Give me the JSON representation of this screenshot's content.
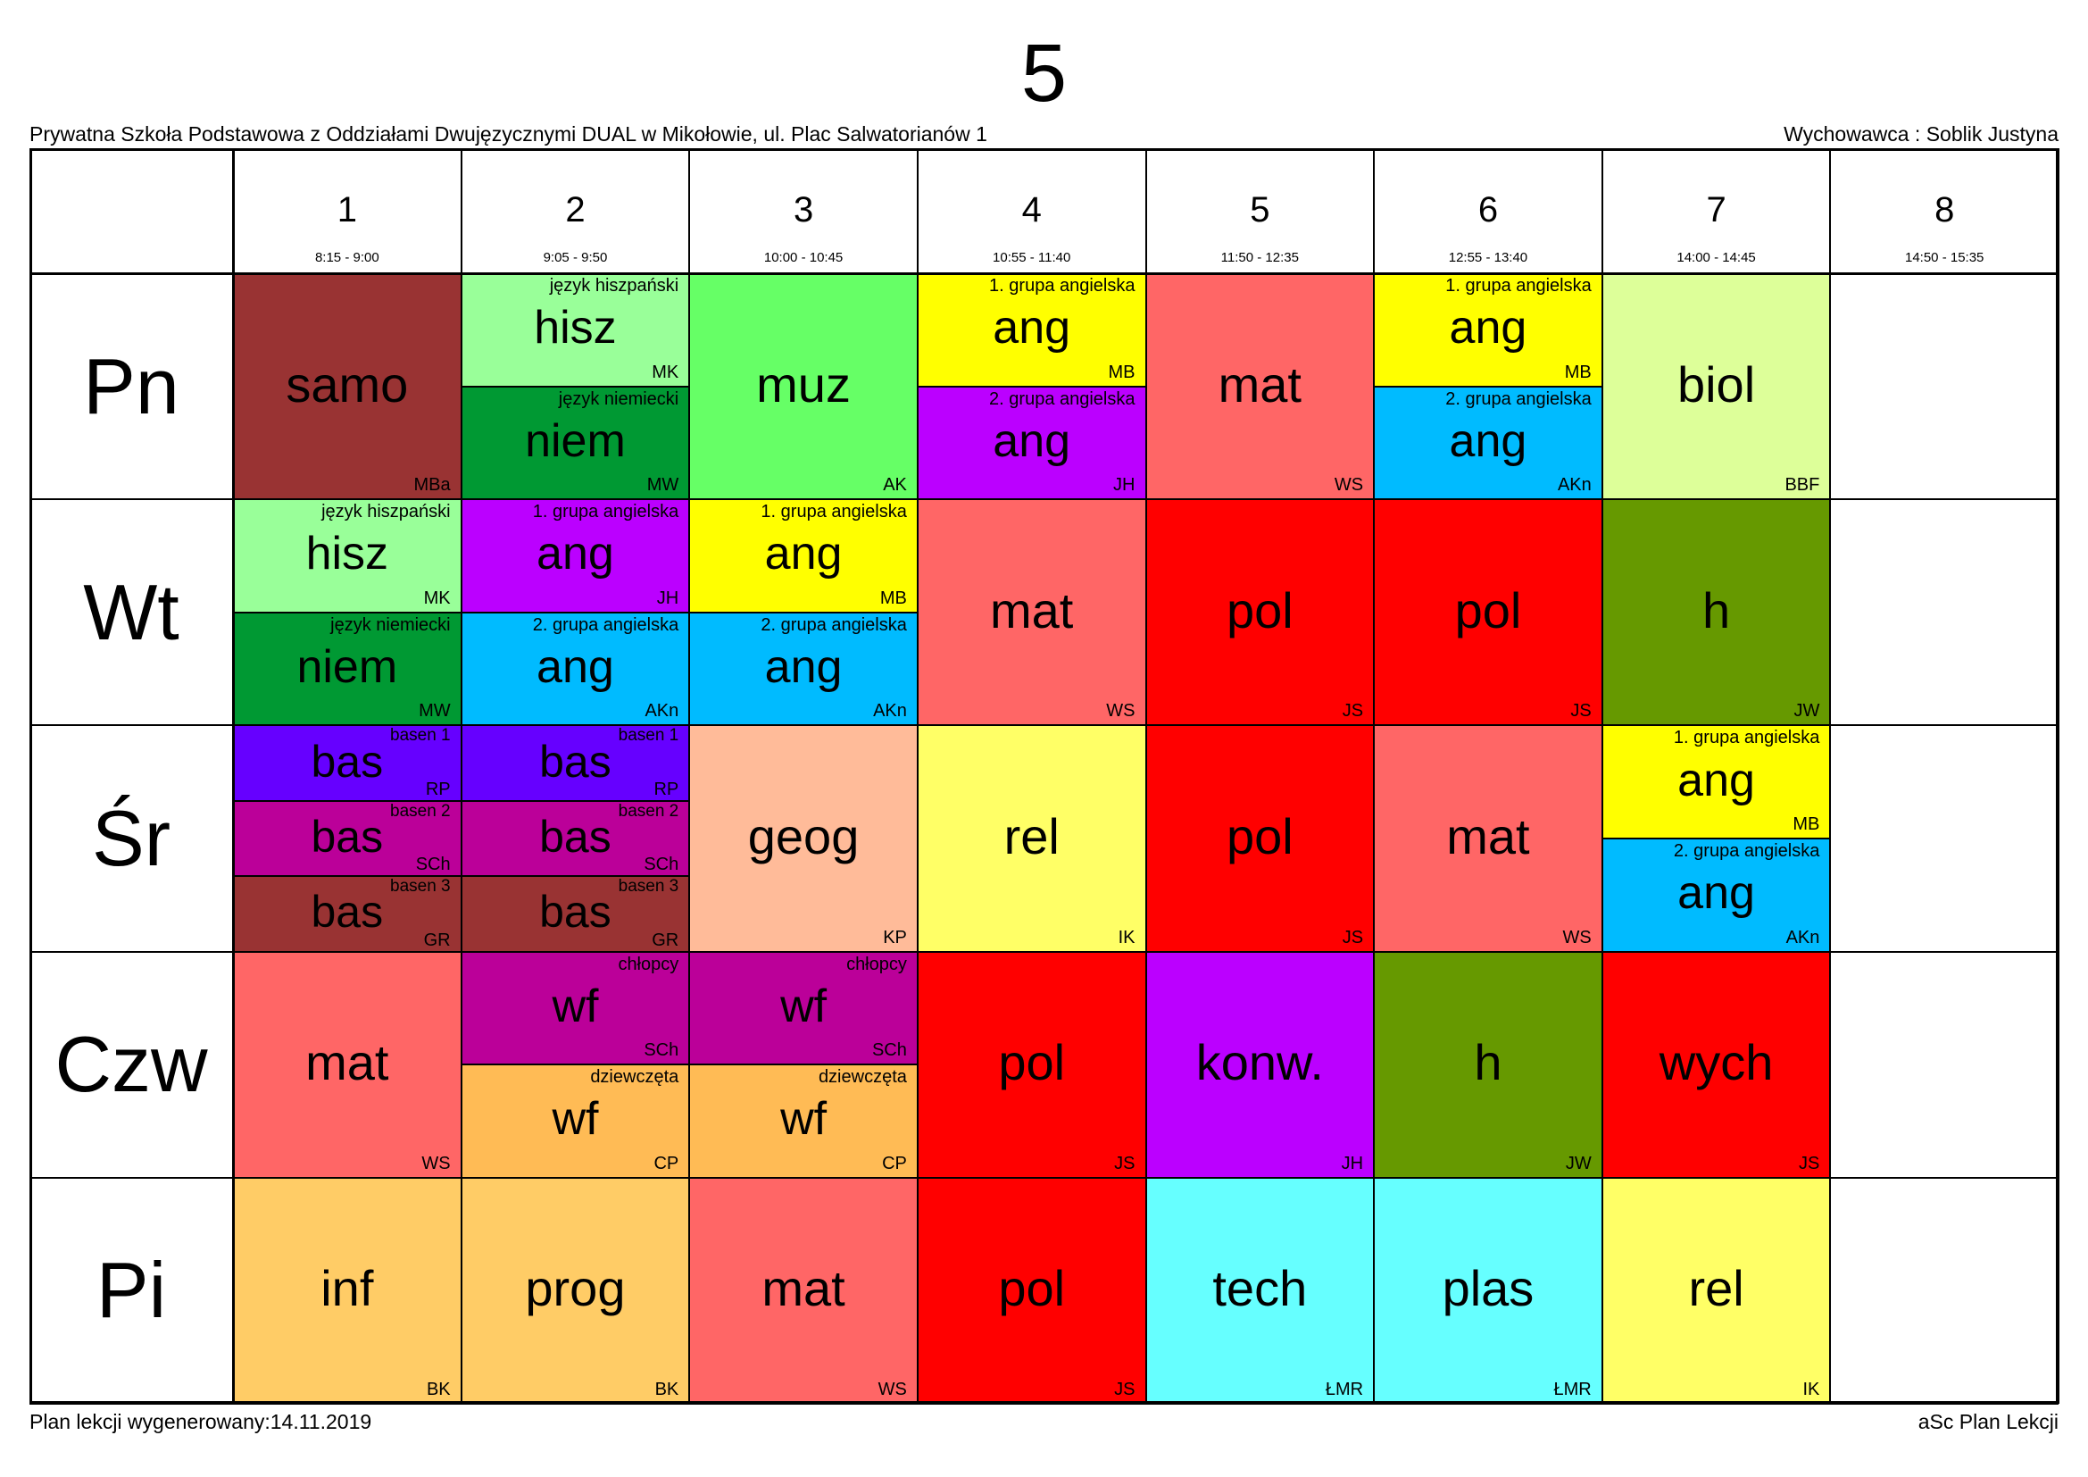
{
  "header": {
    "class_name": "5",
    "school": "Prywatna Szkoła Podstawowa z Oddziałami Dwujęzycznymi DUAL w Mikołowie, ul. Plac Salwatorianów 1",
    "form_teacher": "Wychowawca : Soblik Justyna"
  },
  "footer": {
    "generated": "Plan lekcji wygenerowany:14.11.2019",
    "software": "aSc Plan Lekcji"
  },
  "periods": [
    {
      "num": "1",
      "time": "8:15 - 9:00"
    },
    {
      "num": "2",
      "time": "9:05 - 9:50"
    },
    {
      "num": "3",
      "time": "10:00 - 10:45"
    },
    {
      "num": "4",
      "time": "10:55 - 11:40"
    },
    {
      "num": "5",
      "time": "11:50 - 12:35"
    },
    {
      "num": "6",
      "time": "12:55 - 13:40"
    },
    {
      "num": "7",
      "time": "14:00 - 14:45"
    },
    {
      "num": "8",
      "time": "14:50 - 15:35"
    }
  ],
  "days": [
    "Pn",
    "Wt",
    "Śr",
    "Czw",
    "Pi"
  ],
  "schedule": [
    [
      [
        {
          "subject": "samo",
          "teacher": "MBa",
          "group": "",
          "color": "#993333"
        }
      ],
      [
        {
          "subject": "hisz",
          "teacher": "MK",
          "group": "język hiszpański",
          "color": "#99FF99"
        },
        {
          "subject": "niem",
          "teacher": "MW",
          "group": "język niemiecki",
          "color": "#009933"
        }
      ],
      [
        {
          "subject": "muz",
          "teacher": "AK",
          "group": "",
          "color": "#66FF66"
        }
      ],
      [
        {
          "subject": "ang",
          "teacher": "MB",
          "group": "1. grupa angielska",
          "color": "#FFFF00"
        },
        {
          "subject": "ang",
          "teacher": "JH",
          "group": "2. grupa angielska",
          "color": "#BB00FF"
        }
      ],
      [
        {
          "subject": "mat",
          "teacher": "WS",
          "group": "",
          "color": "#FF6666"
        }
      ],
      [
        {
          "subject": "ang",
          "teacher": "MB",
          "group": "1. grupa angielska",
          "color": "#FFFF00"
        },
        {
          "subject": "ang",
          "teacher": "AKn",
          "group": "2. grupa angielska",
          "color": "#00BBFF"
        }
      ],
      [
        {
          "subject": "biol",
          "teacher": "BBF",
          "group": "",
          "color": "#DDFF99"
        }
      ],
      []
    ],
    [
      [
        {
          "subject": "hisz",
          "teacher": "MK",
          "group": "język hiszpański",
          "color": "#99FF99"
        },
        {
          "subject": "niem",
          "teacher": "MW",
          "group": "język niemiecki",
          "color": "#009933"
        }
      ],
      [
        {
          "subject": "ang",
          "teacher": "JH",
          "group": "1. grupa angielska",
          "color": "#BB00FF"
        },
        {
          "subject": "ang",
          "teacher": "AKn",
          "group": "2. grupa angielska",
          "color": "#00BBFF"
        }
      ],
      [
        {
          "subject": "ang",
          "teacher": "MB",
          "group": "1. grupa angielska",
          "color": "#FFFF00"
        },
        {
          "subject": "ang",
          "teacher": "AKn",
          "group": "2. grupa angielska",
          "color": "#00BBFF"
        }
      ],
      [
        {
          "subject": "mat",
          "teacher": "WS",
          "group": "",
          "color": "#FF6666"
        }
      ],
      [
        {
          "subject": "pol",
          "teacher": "JS",
          "group": "",
          "color": "#FF0000"
        }
      ],
      [
        {
          "subject": "pol",
          "teacher": "JS",
          "group": "",
          "color": "#FF0000"
        }
      ],
      [
        {
          "subject": "h",
          "teacher": "JW",
          "group": "",
          "color": "#669900"
        }
      ],
      []
    ],
    [
      [
        {
          "subject": "bas",
          "teacher": "RP",
          "group": "basen 1",
          "color": "#6600FF"
        },
        {
          "subject": "bas",
          "teacher": "SCh",
          "group": "basen 2",
          "color": "#BB0099"
        },
        {
          "subject": "bas",
          "teacher": "GR",
          "group": "basen 3",
          "color": "#993333"
        }
      ],
      [
        {
          "subject": "bas",
          "teacher": "RP",
          "group": "basen 1",
          "color": "#6600FF"
        },
        {
          "subject": "bas",
          "teacher": "SCh",
          "group": "basen 2",
          "color": "#BB0099"
        },
        {
          "subject": "bas",
          "teacher": "GR",
          "group": "basen 3",
          "color": "#993333"
        }
      ],
      [
        {
          "subject": "geog",
          "teacher": "KP",
          "group": "",
          "color": "#FFBB99"
        }
      ],
      [
        {
          "subject": "rel",
          "teacher": "IK",
          "group": "",
          "color": "#FFFF66"
        }
      ],
      [
        {
          "subject": "pol",
          "teacher": "JS",
          "group": "",
          "color": "#FF0000"
        }
      ],
      [
        {
          "subject": "mat",
          "teacher": "WS",
          "group": "",
          "color": "#FF6666"
        }
      ],
      [
        {
          "subject": "ang",
          "teacher": "MB",
          "group": "1. grupa angielska",
          "color": "#FFFF00"
        },
        {
          "subject": "ang",
          "teacher": "AKn",
          "group": "2. grupa angielska",
          "color": "#00BBFF"
        }
      ],
      []
    ],
    [
      [
        {
          "subject": "mat",
          "teacher": "WS",
          "group": "",
          "color": "#FF6666"
        }
      ],
      [
        {
          "subject": "wf",
          "teacher": "SCh",
          "group": "chłopcy",
          "color": "#BB0099"
        },
        {
          "subject": "wf",
          "teacher": "CP",
          "group": "dziewczęta",
          "color": "#FFBB55"
        }
      ],
      [
        {
          "subject": "wf",
          "teacher": "SCh",
          "group": "chłopcy",
          "color": "#BB0099"
        },
        {
          "subject": "wf",
          "teacher": "CP",
          "group": "dziewczęta",
          "color": "#FFBB55"
        }
      ],
      [
        {
          "subject": "pol",
          "teacher": "JS",
          "group": "",
          "color": "#FF0000"
        }
      ],
      [
        {
          "subject": "konw.",
          "teacher": "JH",
          "group": "",
          "color": "#BB00FF"
        }
      ],
      [
        {
          "subject": "h",
          "teacher": "JW",
          "group": "",
          "color": "#669900"
        }
      ],
      [
        {
          "subject": "wych",
          "teacher": "JS",
          "group": "",
          "color": "#FF0000"
        }
      ],
      []
    ],
    [
      [
        {
          "subject": "inf",
          "teacher": "BK",
          "group": "",
          "color": "#FFCC66"
        }
      ],
      [
        {
          "subject": "prog",
          "teacher": "BK",
          "group": "",
          "color": "#FFCC66"
        }
      ],
      [
        {
          "subject": "mat",
          "teacher": "WS",
          "group": "",
          "color": "#FF6666"
        }
      ],
      [
        {
          "subject": "pol",
          "teacher": "JS",
          "group": "",
          "color": "#FF0000"
        }
      ],
      [
        {
          "subject": "tech",
          "teacher": "ŁMR",
          "group": "",
          "color": "#66FFFF"
        }
      ],
      [
        {
          "subject": "plas",
          "teacher": "ŁMR",
          "group": "",
          "color": "#66FFFF"
        }
      ],
      [
        {
          "subject": "rel",
          "teacher": "IK",
          "group": "",
          "color": "#FFFF66"
        }
      ],
      []
    ]
  ]
}
